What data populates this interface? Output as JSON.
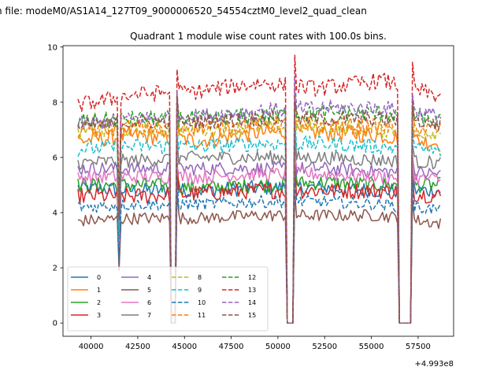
{
  "chart_data": {
    "type": "line",
    "suptitle": "h file: modeM0/AS1A14_127T09_9000006520_54554cztM0_level2_quad_clean",
    "title": "Quadrant 1 module wise count rates with 100.0s bins.",
    "xlabel": "",
    "ylabel": "",
    "x_offset_label": "+4.993e8",
    "xlim": [
      38500,
      59400
    ],
    "ylim": [
      -0.48,
      10.05
    ],
    "x_ticks": [
      40000,
      42500,
      45000,
      47500,
      50000,
      52500,
      55000,
      57500
    ],
    "x_tick_labels": [
      "40000",
      "42500",
      "45000",
      "47500",
      "50000",
      "52500",
      "55000",
      "57500"
    ],
    "y_ticks": [
      0,
      2,
      4,
      6,
      8,
      10
    ],
    "y_tick_labels": [
      "0",
      "2",
      "4",
      "6",
      "8",
      "10"
    ],
    "x_start": 39300,
    "x_end": 58750,
    "x_step": 100,
    "legend_ncol": 4,
    "legend_location": "lower left",
    "dips": [
      {
        "start": 41500,
        "end": 41550,
        "kind": "partial",
        "factor": 0.52
      },
      {
        "start": 44300,
        "end": 44550,
        "kind": "gap"
      },
      {
        "start": 50450,
        "end": 50850,
        "kind": "gap"
      },
      {
        "start": 56500,
        "end": 57150,
        "kind": "gap"
      }
    ],
    "series": [
      {
        "name": "0",
        "color": "#1f77b4",
        "dash": "solid",
        "baseline": [
          4.9,
          4.8,
          4.8,
          4.9,
          4.9,
          4.8,
          4.8
        ],
        "noise": 0.28
      },
      {
        "name": "1",
        "color": "#ff7f0e",
        "dash": "solid",
        "baseline": [
          6.6,
          6.8,
          6.6,
          6.9,
          6.9,
          6.8,
          6.5
        ],
        "noise": 0.3
      },
      {
        "name": "2",
        "color": "#2ca02c",
        "dash": "solid",
        "baseline": [
          5.0,
          5.0,
          4.9,
          5.0,
          5.1,
          5.0,
          5.0
        ],
        "noise": 0.28
      },
      {
        "name": "3",
        "color": "#d62728",
        "dash": "solid",
        "baseline": [
          4.6,
          4.6,
          4.7,
          4.8,
          4.8,
          4.8,
          4.6
        ],
        "noise": 0.3
      },
      {
        "name": "4",
        "color": "#9467bd",
        "dash": "solid",
        "baseline": [
          5.6,
          5.6,
          5.6,
          5.6,
          5.6,
          5.5,
          5.4
        ],
        "noise": 0.25
      },
      {
        "name": "5",
        "color": "#8c564b",
        "dash": "solid",
        "baseline": [
          3.7,
          3.8,
          3.8,
          3.9,
          3.9,
          3.9,
          3.6
        ],
        "noise": 0.22
      },
      {
        "name": "6",
        "color": "#e377c2",
        "dash": "solid",
        "baseline": [
          5.3,
          5.3,
          5.3,
          5.4,
          5.4,
          5.3,
          5.2
        ],
        "noise": 0.25
      },
      {
        "name": "7",
        "color": "#7f7f7f",
        "dash": "solid",
        "baseline": [
          5.8,
          5.9,
          6.0,
          6.0,
          6.0,
          5.9,
          5.8
        ],
        "noise": 0.25
      },
      {
        "name": "8",
        "color": "#bcbd22",
        "dash": "dashed",
        "baseline": [
          6.9,
          7.0,
          7.0,
          7.1,
          7.1,
          7.0,
          6.9
        ],
        "noise": 0.28
      },
      {
        "name": "9",
        "color": "#17becf",
        "dash": "dashed",
        "baseline": [
          6.3,
          6.4,
          6.4,
          6.5,
          6.5,
          6.4,
          6.2
        ],
        "noise": 0.28
      },
      {
        "name": "10",
        "color": "#1f77b4",
        "dash": "dashed",
        "baseline": [
          4.2,
          4.3,
          4.3,
          4.4,
          4.4,
          4.3,
          4.1
        ],
        "noise": 0.22
      },
      {
        "name": "11",
        "color": "#ff7f0e",
        "dash": "dashed",
        "baseline": [
          7.0,
          7.1,
          7.1,
          7.2,
          7.2,
          7.1,
          7.0
        ],
        "noise": 0.3
      },
      {
        "name": "12",
        "color": "#2ca02c",
        "dash": "dashed",
        "baseline": [
          7.3,
          7.4,
          7.4,
          7.5,
          7.6,
          7.6,
          7.3
        ],
        "noise": 0.3
      },
      {
        "name": "13",
        "color": "#d62728",
        "dash": "dashed",
        "baseline": [
          7.9,
          8.3,
          8.4,
          8.7,
          8.5,
          8.8,
          8.2
        ],
        "noise": 0.3
      },
      {
        "name": "14",
        "color": "#9467bd",
        "dash": "dashed",
        "baseline": [
          7.2,
          7.4,
          7.5,
          7.7,
          7.8,
          7.8,
          7.5
        ],
        "noise": 0.28
      },
      {
        "name": "15",
        "color": "#8c564b",
        "dash": "dashed",
        "baseline": [
          7.1,
          7.3,
          7.3,
          7.4,
          7.4,
          7.4,
          7.2
        ],
        "noise": 0.28
      }
    ]
  }
}
